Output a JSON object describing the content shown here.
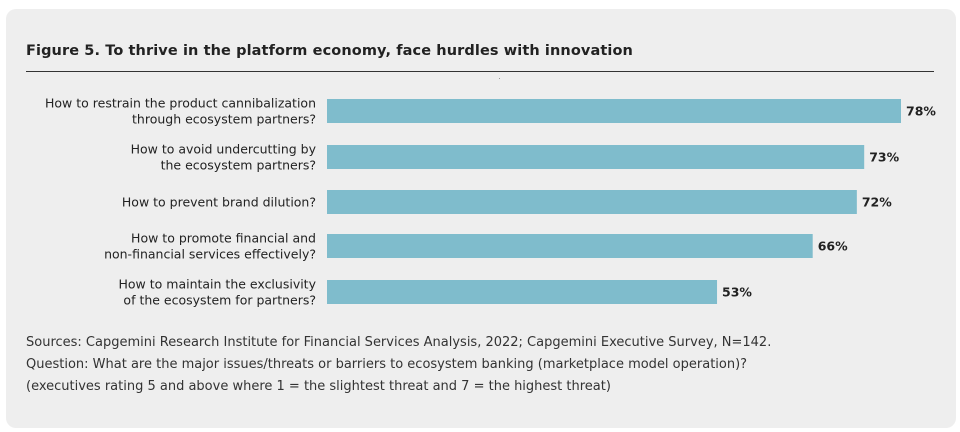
{
  "figure": {
    "title": "Figure 5. To thrive in the platform economy, face hurdles with innovation"
  },
  "chart_data": {
    "type": "bar",
    "orientation": "horizontal",
    "categories": [
      [
        "How to restrain the product cannibalization",
        "through ecosystem partners?"
      ],
      [
        "How to avoid undercutting by",
        "the ecosystem partners?"
      ],
      [
        "How to prevent brand dilution?"
      ],
      [
        "How to promote financial and",
        "non-financial services effectively?"
      ],
      [
        "How to maintain the exclusivity",
        "of the ecosystem for partners?"
      ]
    ],
    "values": [
      78,
      73,
      72,
      66,
      53
    ],
    "value_labels": [
      "78%",
      "73%",
      "72%",
      "66%",
      "53%"
    ],
    "unit": "%",
    "xlim": [
      0,
      78
    ],
    "bar_color": "#7fbccc",
    "grid": false,
    "legend": "none"
  },
  "notes": {
    "sources": "Sources: Capgemini Research Institute for Financial Services Analysis, 2022; Capgemini Executive Survey, N=142.",
    "question": "Question: What are the major issues/threats or barriers to ecosystem banking (marketplace model operation)?",
    "rating": "(executives rating 5 and above where 1 = the slightest threat and 7 = the highest threat)"
  }
}
